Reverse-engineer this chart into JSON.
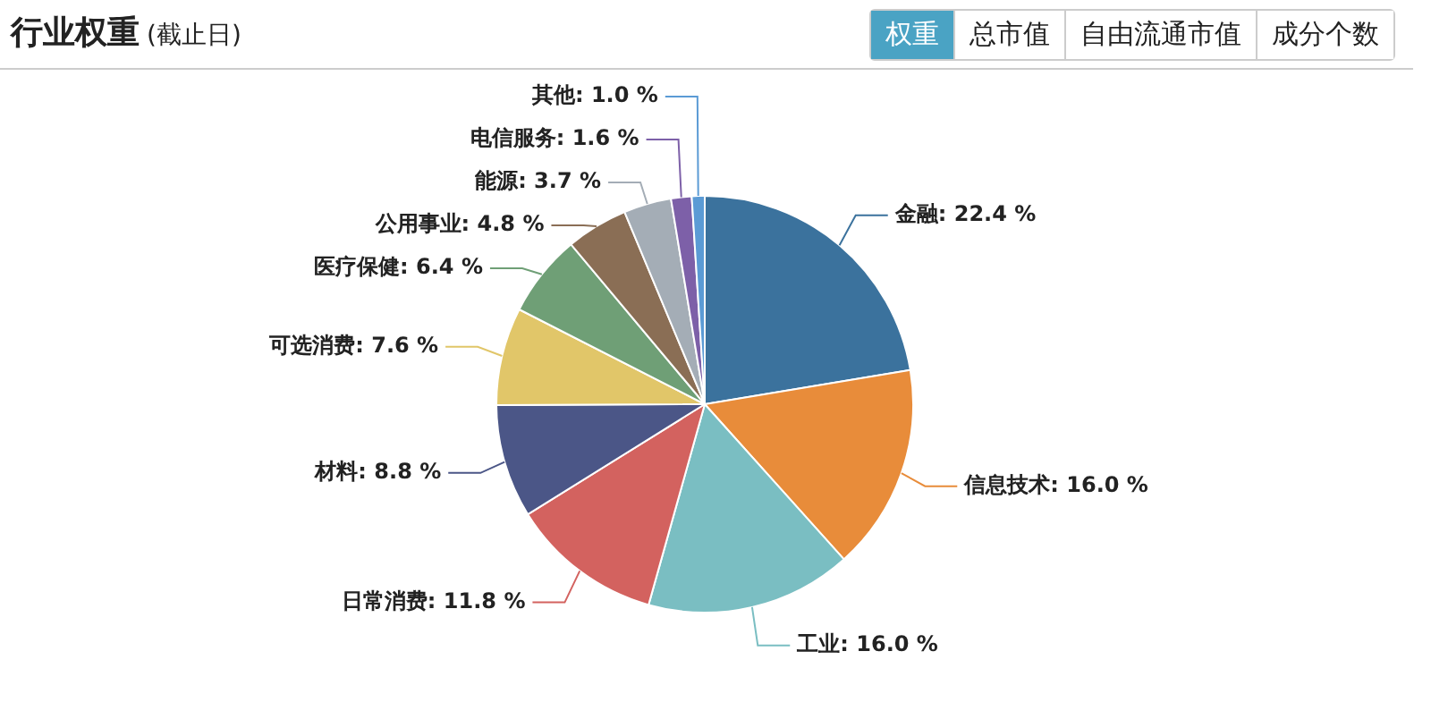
{
  "chart_data": {
    "type": "pie",
    "title": "行业权重",
    "subtitle": "(截止日)",
    "annotations": [
      "权重",
      "总市值",
      "自由流通市值",
      "成分个数"
    ],
    "categories": [
      "金融",
      "信息技术",
      "工业",
      "日常消费",
      "材料",
      "可选消费",
      "医疗保健",
      "公用事业",
      "能源",
      "电信服务",
      "其他"
    ],
    "values": [
      22.4,
      16.0,
      16.0,
      11.8,
      8.8,
      7.6,
      6.4,
      4.8,
      3.7,
      1.6,
      1.0
    ],
    "colors": [
      "#3b729d",
      "#e88c3a",
      "#7abec2",
      "#d3625f",
      "#4b5687",
      "#e1c669",
      "#6f9f76",
      "#8a6e55",
      "#a4adb6",
      "#7d60a8",
      "#5b9bd5"
    ],
    "value_labels": [
      ": 22.4 %",
      ": 16.0 %",
      ": 16.0 %",
      ": 11.8 %",
      ": 8.8 %",
      ": 7.6 %",
      ": 6.4 %",
      ": 4.8 %",
      ": 3.7 %",
      ": 1.6 %",
      ": 1.0 %"
    ],
    "legend": false
  }
}
